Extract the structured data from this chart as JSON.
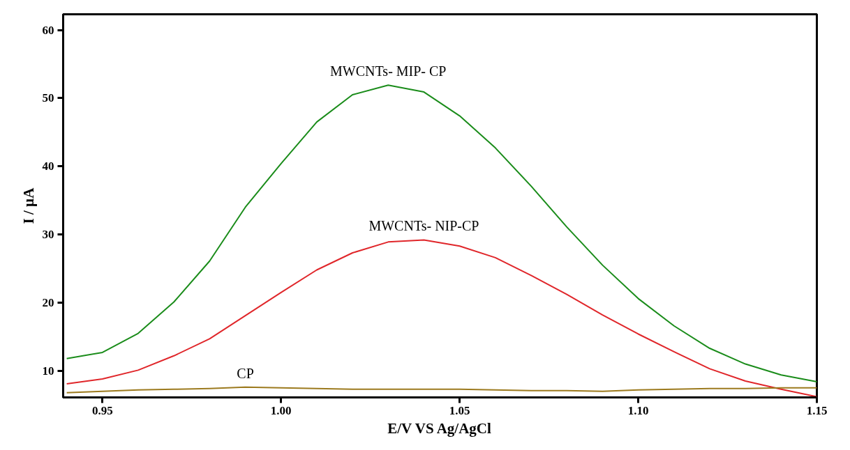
{
  "chart_data": {
    "type": "line",
    "xlabel": "E/V VS Ag/AgCl",
    "ylabel": "I / µA",
    "x": [
      0.94,
      0.95,
      0.96,
      0.97,
      0.98,
      0.99,
      1.0,
      1.01,
      1.02,
      1.03,
      1.04,
      1.05,
      1.06,
      1.07,
      1.08,
      1.09,
      1.1,
      1.11,
      1.12,
      1.13,
      1.14,
      1.15
    ],
    "series": [
      {
        "name": "MWCNTs- MIP- CP",
        "color": "#1a8c1a",
        "values": [
          11.8,
          12.7,
          15.5,
          20.1,
          26.1,
          34.0,
          40.4,
          46.5,
          50.5,
          51.9,
          50.9,
          47.4,
          42.7,
          37.1,
          31.1,
          25.5,
          20.6,
          16.6,
          13.3,
          11.0,
          9.4,
          8.4
        ]
      },
      {
        "name": "MWCNTs- NIP-CP",
        "color": "#e0262a",
        "values": [
          8.1,
          8.8,
          10.1,
          12.2,
          14.7,
          18.1,
          21.5,
          24.8,
          27.3,
          28.9,
          29.2,
          28.3,
          26.6,
          24.0,
          21.2,
          18.2,
          15.4,
          12.8,
          10.3,
          8.5,
          7.3,
          6.2
        ]
      },
      {
        "name": "CP",
        "color": "#9c7a1e",
        "values": [
          6.8,
          7.0,
          7.2,
          7.3,
          7.4,
          7.6,
          7.5,
          7.4,
          7.3,
          7.3,
          7.3,
          7.3,
          7.2,
          7.1,
          7.1,
          7.0,
          7.2,
          7.3,
          7.4,
          7.4,
          7.5,
          7.5
        ]
      }
    ],
    "xlim": [
      0.939,
      1.15
    ],
    "xticks": [
      {
        "value": 0.95,
        "label": "0.95"
      },
      {
        "value": 1.0,
        "label": "1.00"
      },
      {
        "value": 1.05,
        "label": "1.05"
      },
      {
        "value": 1.1,
        "label": "1.10"
      },
      {
        "value": 1.15,
        "label": "1.15"
      }
    ],
    "ylim": [
      6.1,
      62.3
    ],
    "yticks": [
      10,
      20,
      30,
      40,
      50,
      60
    ],
    "grid": false,
    "marker": "none",
    "line_style": "solid"
  }
}
